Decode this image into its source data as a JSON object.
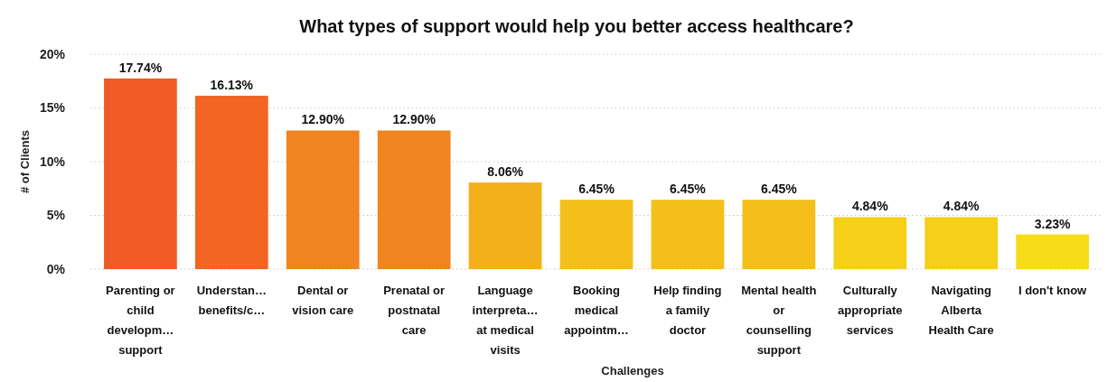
{
  "chart_data": {
    "type": "bar",
    "title": "What types of support would help you better access healthcare?",
    "xlabel": "Challenges",
    "ylabel": "# of Clients",
    "categories": [
      "Parenting or child developm… support",
      "Understan… benefits/c…",
      "Dental or vision care",
      "Prenatal or postnatal care",
      "Language interpreta… at medical visits",
      "Booking medical appointm…",
      "Help finding a family doctor",
      "Mental health or counselling support",
      "Culturally appropriate services",
      "Navigating Alberta Health Care",
      "I don't know"
    ],
    "values": [
      17.74,
      16.13,
      12.9,
      12.9,
      8.06,
      6.45,
      6.45,
      6.45,
      4.84,
      4.84,
      3.23
    ],
    "value_labels": [
      "17.74%",
      "16.13%",
      "12.90%",
      "12.90%",
      "8.06%",
      "6.45%",
      "6.45%",
      "6.45%",
      "4.84%",
      "4.84%",
      "3.23%"
    ],
    "colors": [
      "#f05a24",
      "#f26522",
      "#f08421",
      "#f08421",
      "#f4b01a",
      "#f4bf1a",
      "#f4bf1a",
      "#f4bf1a",
      "#f5cf18",
      "#f5cf18",
      "#f7dc18"
    ],
    "ylim": [
      0,
      20
    ],
    "yticks": [
      {
        "value": 0,
        "label": "0%"
      },
      {
        "value": 5,
        "label": "5%"
      },
      {
        "value": 10,
        "label": "10%"
      },
      {
        "value": 15,
        "label": "15%"
      },
      {
        "value": 20,
        "label": "20%"
      }
    ],
    "grid": "y"
  }
}
